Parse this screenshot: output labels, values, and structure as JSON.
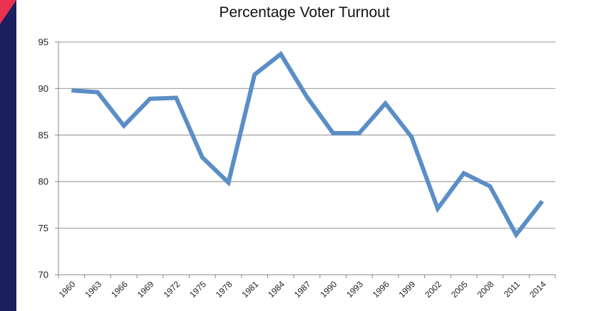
{
  "chart_data": {
    "type": "line",
    "title": "Percentage Voter Turnout",
    "xlabel": "",
    "ylabel": "",
    "ylim": [
      70,
      95
    ],
    "y_ticks": [
      70,
      75,
      80,
      85,
      90,
      95
    ],
    "grid": true,
    "x": [
      "1960",
      "1963",
      "1966",
      "1969",
      "1972",
      "1975",
      "1978",
      "1981",
      "1984",
      "1987",
      "1990",
      "1993",
      "1996",
      "1999",
      "2002",
      "2005",
      "2008",
      "2011",
      "2014"
    ],
    "series": [
      {
        "values": [
          89.8,
          89.6,
          86.0,
          88.9,
          89.0,
          82.6,
          79.9,
          91.5,
          93.7,
          89.1,
          85.2,
          85.2,
          88.4,
          84.8,
          77.1,
          80.9,
          79.5,
          74.3,
          77.9
        ]
      }
    ],
    "colors": {
      "line": "#5b8ec6",
      "grid": "#a9a9a9",
      "axis": "#888888",
      "sidebar": "#1b1f5e",
      "accent": "#e8324f"
    }
  }
}
